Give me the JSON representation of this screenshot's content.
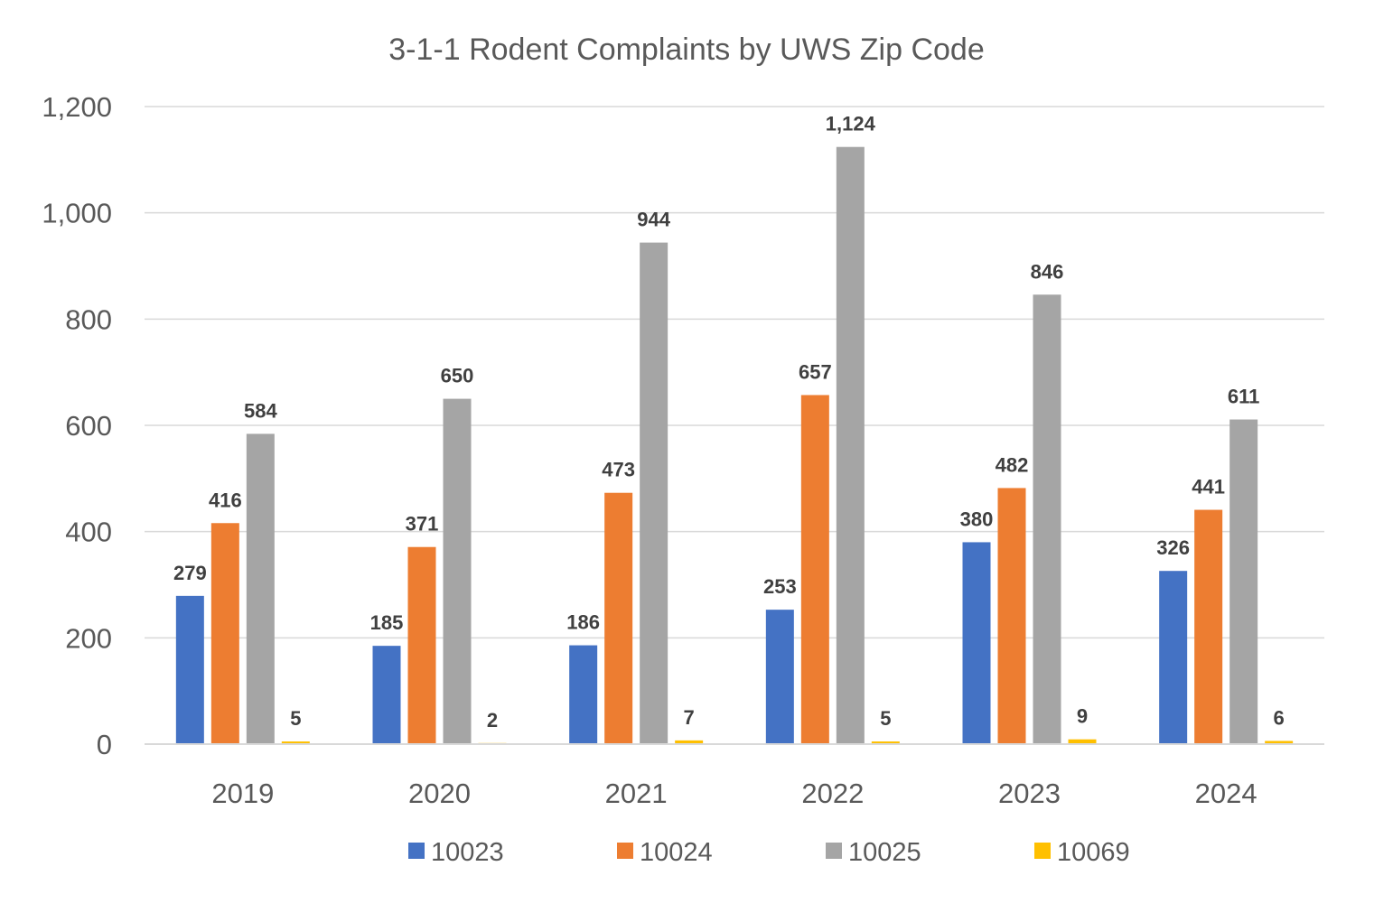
{
  "chart_data": {
    "type": "bar",
    "title": "3-1-1 Rodent Complaints by UWS Zip Code",
    "xlabel": "",
    "ylabel": "",
    "categories": [
      "2019",
      "2020",
      "2021",
      "2022",
      "2023",
      "2024"
    ],
    "ylim": [
      0,
      1200
    ],
    "yticks": [
      0,
      200,
      400,
      600,
      800,
      1000,
      1200
    ],
    "ytick_labels": [
      "0",
      "200",
      "400",
      "600",
      "800",
      "1,000",
      "1,200"
    ],
    "grid": true,
    "legend_position": "bottom",
    "series": [
      {
        "name": "10023",
        "color": "#4472C4",
        "values": [
          279,
          185,
          186,
          253,
          380,
          326
        ],
        "labels": [
          "279",
          "185",
          "186",
          "253",
          "380",
          "326"
        ]
      },
      {
        "name": "10024",
        "color": "#ED7D31",
        "values": [
          416,
          371,
          473,
          657,
          482,
          441
        ],
        "labels": [
          "416",
          "371",
          "473",
          "657",
          "482",
          "441"
        ]
      },
      {
        "name": "10025",
        "color": "#A5A5A5",
        "values": [
          584,
          650,
          944,
          1124,
          846,
          611
        ],
        "labels": [
          "584",
          "650",
          "944",
          "1,124",
          "846",
          "611"
        ]
      },
      {
        "name": "10069",
        "color": "#FFC000",
        "values": [
          5,
          2,
          7,
          5,
          9,
          6
        ],
        "labels": [
          "5",
          "2",
          "7",
          "5",
          "9",
          "6"
        ]
      }
    ]
  }
}
